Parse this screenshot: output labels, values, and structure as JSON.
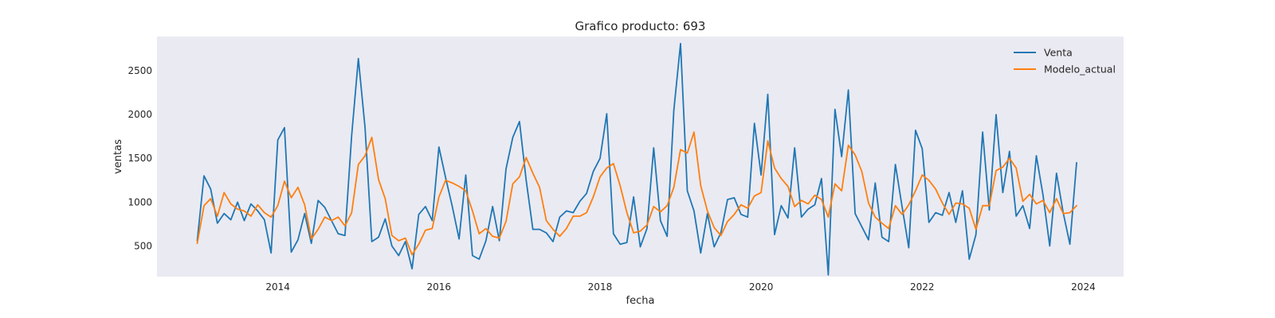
{
  "chart_data": {
    "type": "line",
    "title": "Grafico producto: 693",
    "xlabel": "fecha",
    "ylabel": "ventas",
    "xlim": [
      2012.5,
      2024.5
    ],
    "ylim": [
      150,
      2890
    ],
    "x_ticks": [
      2014,
      2016,
      2018,
      2020,
      2022,
      2024
    ],
    "x_tick_labels": [
      "2014",
      "2016",
      "2018",
      "2020",
      "2022",
      "2024"
    ],
    "y_ticks": [
      500,
      1000,
      1500,
      2000,
      2500
    ],
    "y_tick_labels": [
      "500",
      "1000",
      "1500",
      "2000",
      "2500"
    ],
    "grid": false,
    "background_color": "#eaeaf2",
    "legend_position": "top-right",
    "x": [
      "2013-01",
      "2013-02",
      "2013-03",
      "2013-04",
      "2013-05",
      "2013-06",
      "2013-07",
      "2013-08",
      "2013-09",
      "2013-10",
      "2013-11",
      "2013-12",
      "2014-01",
      "2014-02",
      "2014-03",
      "2014-04",
      "2014-05",
      "2014-06",
      "2014-07",
      "2014-08",
      "2014-09",
      "2014-10",
      "2014-11",
      "2014-12",
      "2015-01",
      "2015-02",
      "2015-03",
      "2015-04",
      "2015-05",
      "2015-06",
      "2015-07",
      "2015-08",
      "2015-09",
      "2015-10",
      "2015-11",
      "2015-12",
      "2016-01",
      "2016-02",
      "2016-03",
      "2016-04",
      "2016-05",
      "2016-06",
      "2016-07",
      "2016-08",
      "2016-09",
      "2016-10",
      "2016-11",
      "2016-12",
      "2017-01",
      "2017-02",
      "2017-03",
      "2017-04",
      "2017-05",
      "2017-06",
      "2017-07",
      "2017-08",
      "2017-09",
      "2017-10",
      "2017-11",
      "2017-12",
      "2018-01",
      "2018-02",
      "2018-03",
      "2018-04",
      "2018-05",
      "2018-06",
      "2018-07",
      "2018-08",
      "2018-09",
      "2018-10",
      "2018-11",
      "2018-12",
      "2019-01",
      "2019-02",
      "2019-03",
      "2019-04",
      "2019-05",
      "2019-06",
      "2019-07",
      "2019-08",
      "2019-09",
      "2019-10",
      "2019-11",
      "2019-12",
      "2020-01",
      "2020-02",
      "2020-03",
      "2020-04",
      "2020-05",
      "2020-06",
      "2020-07",
      "2020-08",
      "2020-09",
      "2020-10",
      "2020-11",
      "2020-12",
      "2021-01",
      "2021-02",
      "2021-03",
      "2021-04",
      "2021-05",
      "2021-06",
      "2021-07",
      "2021-08",
      "2021-09",
      "2021-10",
      "2021-11",
      "2021-12",
      "2022-01",
      "2022-02",
      "2022-03",
      "2022-04",
      "2022-05",
      "2022-06",
      "2022-07",
      "2022-08",
      "2022-09",
      "2022-10",
      "2022-11",
      "2022-12",
      "2023-01",
      "2023-02",
      "2023-03",
      "2023-04",
      "2023-05",
      "2023-06",
      "2023-07",
      "2023-08",
      "2023-09",
      "2023-10",
      "2023-11",
      "2023-12"
    ],
    "series": [
      {
        "name": "Venta",
        "color": "#1f77b4",
        "values": [
          560,
          1300,
          1150,
          760,
          870,
          800,
          1000,
          790,
          980,
          900,
          800,
          420,
          1710,
          1850,
          430,
          570,
          870,
          530,
          1020,
          940,
          790,
          640,
          620,
          1760,
          2640,
          1850,
          550,
          600,
          810,
          500,
          390,
          550,
          240,
          860,
          950,
          790,
          1630,
          1280,
          950,
          580,
          1310,
          390,
          350,
          560,
          950,
          560,
          1380,
          1740,
          1920,
          1250,
          690,
          690,
          650,
          550,
          830,
          900,
          880,
          1010,
          1100,
          1350,
          1500,
          2010,
          640,
          520,
          540,
          1060,
          490,
          700,
          1620,
          790,
          610,
          2050,
          2810,
          1130,
          900,
          420,
          870,
          490,
          650,
          1030,
          1050,
          860,
          830,
          1900,
          1310,
          2230,
          630,
          960,
          820,
          1620,
          830,
          920,
          970,
          1270,
          170,
          2060,
          1520,
          2280,
          870,
          720,
          570,
          1220,
          600,
          550,
          1430,
          950,
          480,
          1820,
          1610,
          770,
          880,
          850,
          1110,
          770,
          1130,
          350,
          630,
          1800,
          910,
          2000,
          1110,
          1580,
          840,
          960,
          700,
          1530,
          1080,
          500,
          1330,
          880,
          520,
          1450
        ]
      },
      {
        "name": "Modelo_actual",
        "color": "#ff7f0e",
        "values": [
          530,
          960,
          1040,
          840,
          1110,
          980,
          920,
          900,
          840,
          970,
          880,
          830,
          960,
          1240,
          1050,
          1170,
          970,
          580,
          690,
          830,
          790,
          830,
          730,
          880,
          1430,
          1530,
          1740,
          1260,
          1040,
          620,
          560,
          590,
          400,
          520,
          680,
          700,
          1060,
          1250,
          1220,
          1180,
          1130,
          900,
          640,
          700,
          610,
          590,
          780,
          1210,
          1290,
          1510,
          1330,
          1170,
          790,
          690,
          610,
          700,
          840,
          840,
          880,
          1060,
          1290,
          1390,
          1440,
          1190,
          880,
          650,
          670,
          740,
          950,
          890,
          960,
          1170,
          1600,
          1560,
          1800,
          1190,
          900,
          710,
          620,
          780,
          860,
          970,
          930,
          1070,
          1110,
          1700,
          1390,
          1270,
          1180,
          950,
          1020,
          980,
          1080,
          1030,
          830,
          1210,
          1130,
          1650,
          1540,
          1350,
          990,
          830,
          760,
          700,
          960,
          860,
          970,
          1130,
          1310,
          1250,
          1150,
          990,
          860,
          990,
          980,
          930,
          690,
          960,
          960,
          1360,
          1400,
          1500,
          1390,
          1010,
          1090,
          980,
          1020,
          880,
          1040,
          870,
          880,
          960
        ]
      }
    ]
  }
}
